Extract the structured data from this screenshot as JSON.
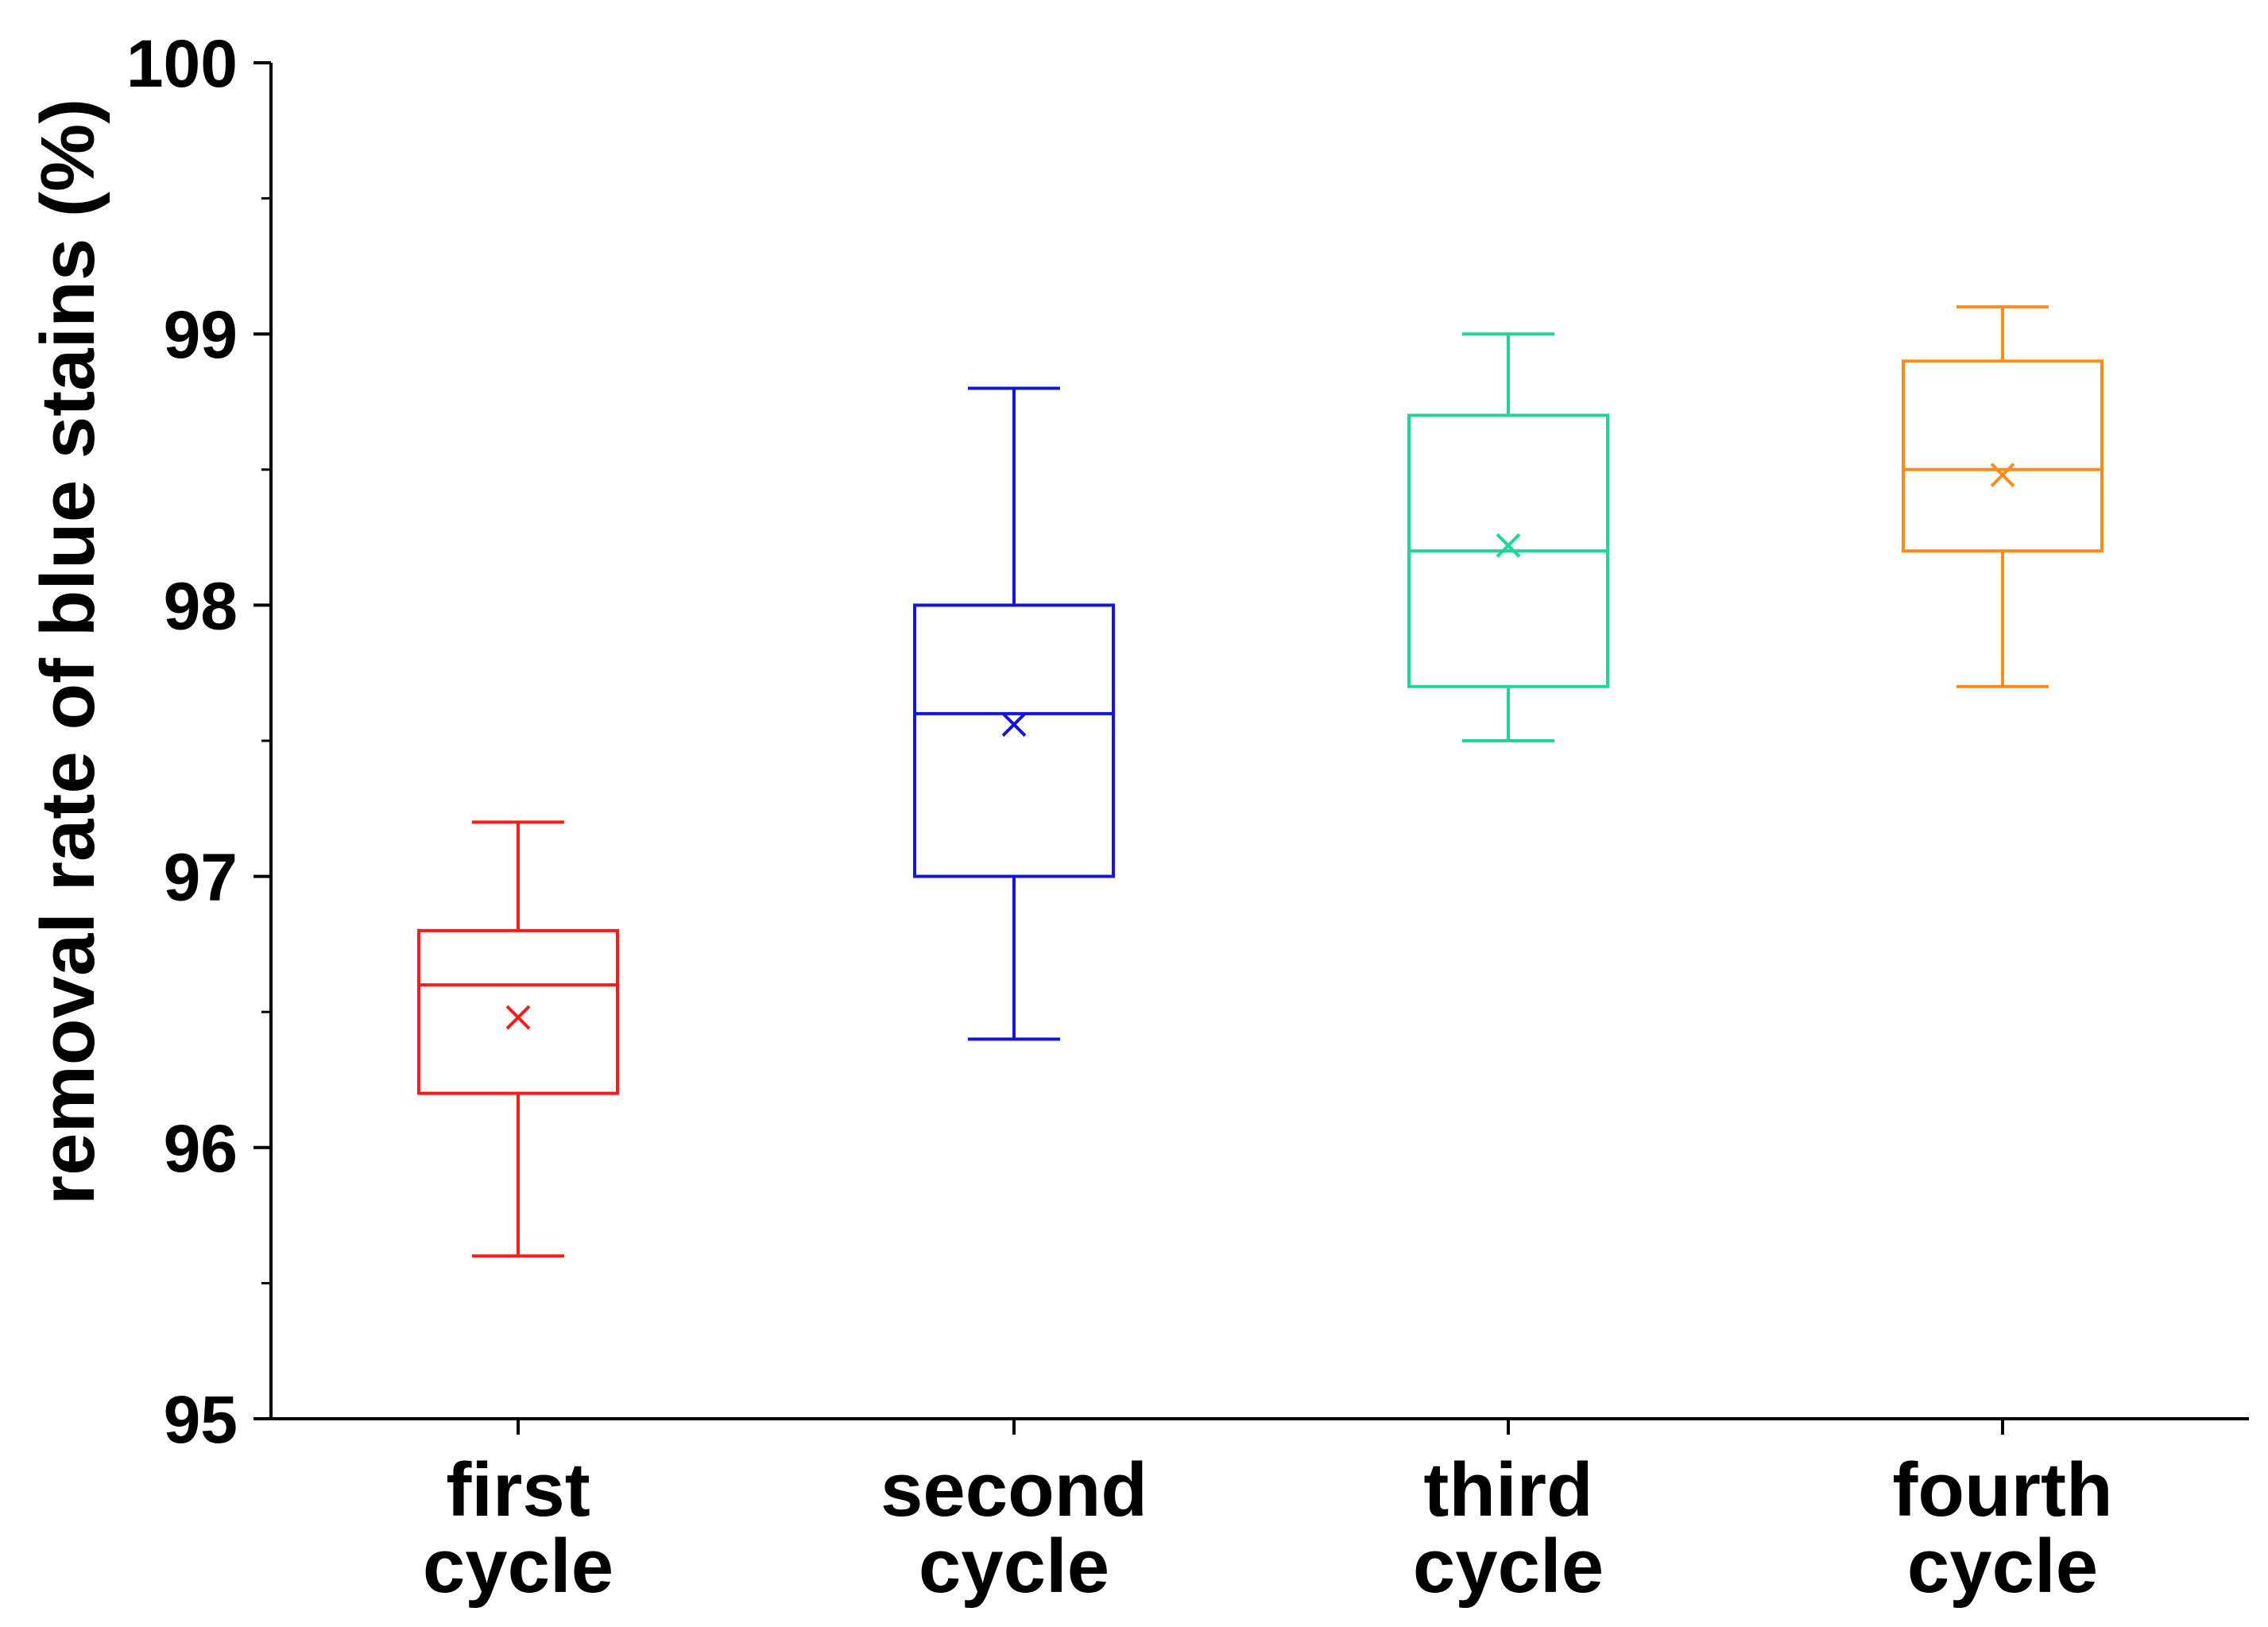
{
  "chart_data": {
    "type": "box",
    "xlabel": "",
    "ylabel": "removal rate of blue stains (%)",
    "ylim": [
      95,
      100
    ],
    "yticks": [
      95,
      96,
      97,
      98,
      99,
      100
    ],
    "grid": false,
    "legend": "none",
    "categories": [
      {
        "label_lines": [
          "first",
          "cycle"
        ],
        "color": "#ff1a1a",
        "whisker_low": 95.6,
        "q1": 96.2,
        "median": 96.6,
        "q3": 96.8,
        "whisker_high": 97.2,
        "mean": 96.48
      },
      {
        "label_lines": [
          "second",
          "cycle"
        ],
        "color": "#1414e0",
        "whisker_low": 96.4,
        "q1": 97.0,
        "median": 97.6,
        "q3": 98.0,
        "whisker_high": 98.8,
        "mean": 97.56
      },
      {
        "label_lines": [
          "third",
          "cycle"
        ],
        "color": "#1fd696",
        "whisker_low": 97.5,
        "q1": 97.7,
        "median": 98.2,
        "q3": 98.7,
        "whisker_high": 99.0,
        "mean": 98.22
      },
      {
        "label_lines": [
          "fourth",
          "cycle"
        ],
        "color": "#ff8c1a",
        "whisker_low": 97.7,
        "q1": 98.2,
        "median": 98.5,
        "q3": 98.9,
        "whisker_high": 99.1,
        "mean": 98.48
      }
    ]
  }
}
